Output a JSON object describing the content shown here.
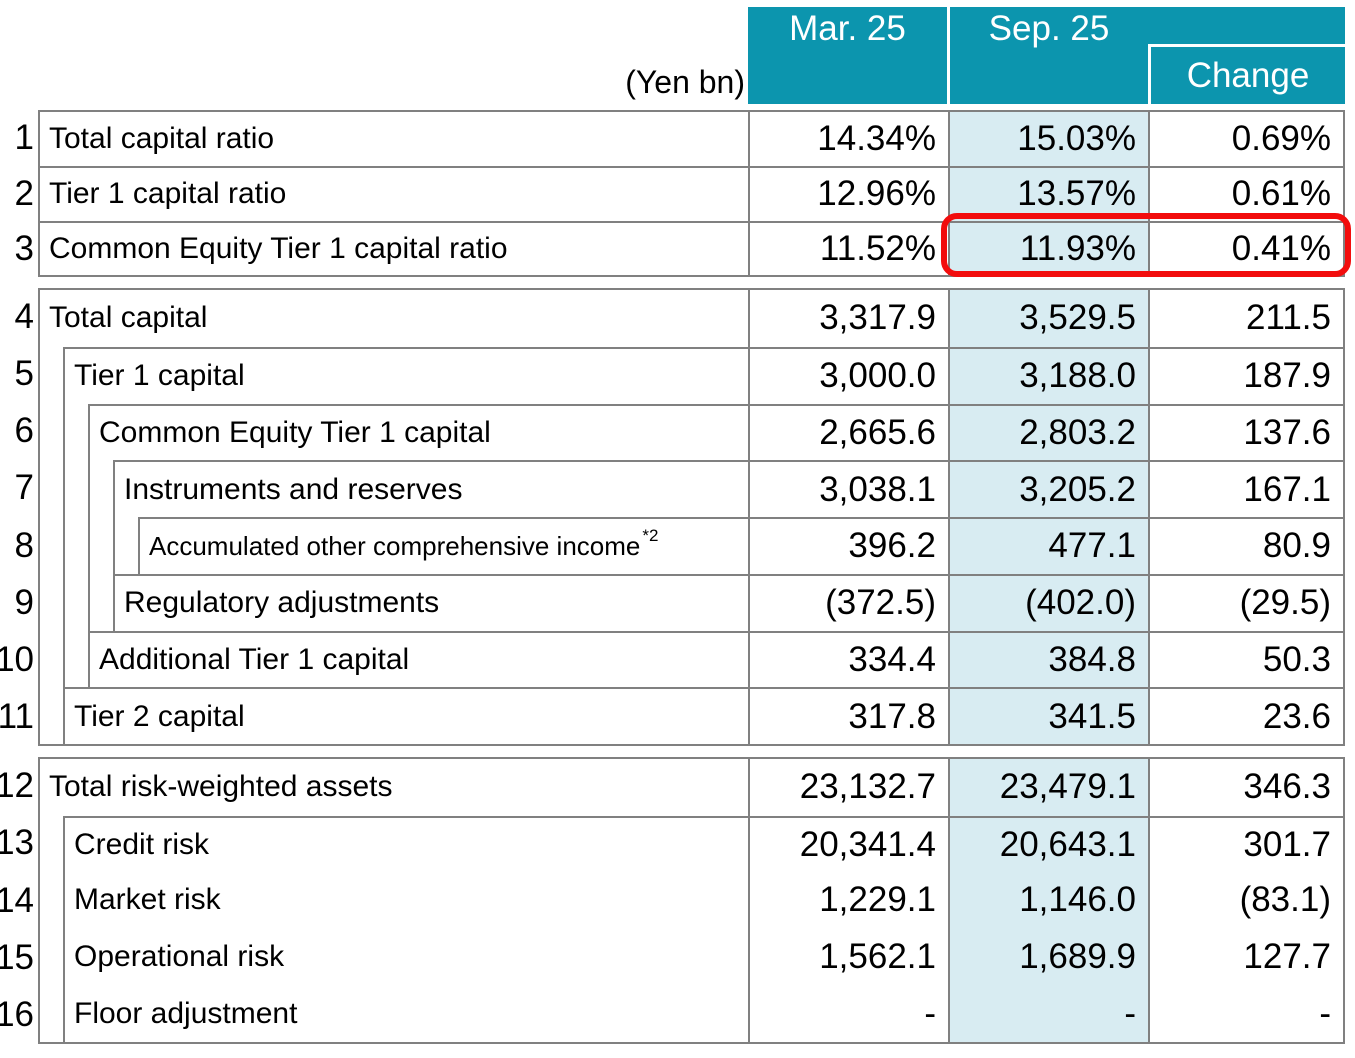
{
  "unit_label": "(Yen bn)",
  "header": {
    "mar": "Mar. 25",
    "sep": "Sep. 25",
    "change": "Change"
  },
  "colors": {
    "header_teal": "#0C95AE",
    "column_highlight_blue": "#D8ECF2",
    "border_gray": "#808080",
    "highlight_red": "#F20D0D"
  },
  "rows": [
    {
      "num": "1",
      "label": "Total capital ratio",
      "mar": "14.34%",
      "sep": "15.03%",
      "chg": "0.69%"
    },
    {
      "num": "2",
      "label": "Tier 1 capital ratio",
      "mar": "12.96%",
      "sep": "13.57%",
      "chg": "0.61%"
    },
    {
      "num": "3",
      "label": "Common Equity Tier 1 capital ratio",
      "mar": "11.52%",
      "sep": "11.93%",
      "chg": "0.41%"
    },
    {
      "num": "4",
      "label": "Total capital",
      "mar": "3,317.9",
      "sep": "3,529.5",
      "chg": "211.5"
    },
    {
      "num": "5",
      "label": "Tier 1 capital",
      "mar": "3,000.0",
      "sep": "3,188.0",
      "chg": "187.9"
    },
    {
      "num": "6",
      "label": "Common Equity Tier 1 capital",
      "mar": "2,665.6",
      "sep": "2,803.2",
      "chg": "137.6"
    },
    {
      "num": "7",
      "label": "Instruments and reserves",
      "mar": "3,038.1",
      "sep": "3,205.2",
      "chg": "167.1"
    },
    {
      "num": "8",
      "label": "Accumulated other comprehensive income",
      "label_sup": "*2",
      "mar": "396.2",
      "sep": "477.1",
      "chg": "80.9"
    },
    {
      "num": "9",
      "label": "Regulatory adjustments",
      "mar": "(372.5)",
      "sep": "(402.0)",
      "chg": "(29.5)"
    },
    {
      "num": "10",
      "label": "Additional Tier 1 capital",
      "mar": "334.4",
      "sep": "384.8",
      "chg": "50.3"
    },
    {
      "num": "11",
      "label": "Tier 2 capital",
      "mar": "317.8",
      "sep": "341.5",
      "chg": "23.6"
    },
    {
      "num": "12",
      "label": "Total risk-weighted assets",
      "mar": "23,132.7",
      "sep": "23,479.1",
      "chg": "346.3"
    },
    {
      "num": "13",
      "label": "Credit risk",
      "mar": "20,341.4",
      "sep": "20,643.1",
      "chg": "301.7"
    },
    {
      "num": "14",
      "label": "Market risk",
      "mar": "1,229.1",
      "sep": "1,146.0",
      "chg": "(83.1)"
    },
    {
      "num": "15",
      "label": "Operational risk",
      "mar": "1,562.1",
      "sep": "1,689.9",
      "chg": "127.7"
    },
    {
      "num": "16",
      "label": "Floor adjustment",
      "mar": "-",
      "sep": "-",
      "chg": "-"
    }
  ]
}
